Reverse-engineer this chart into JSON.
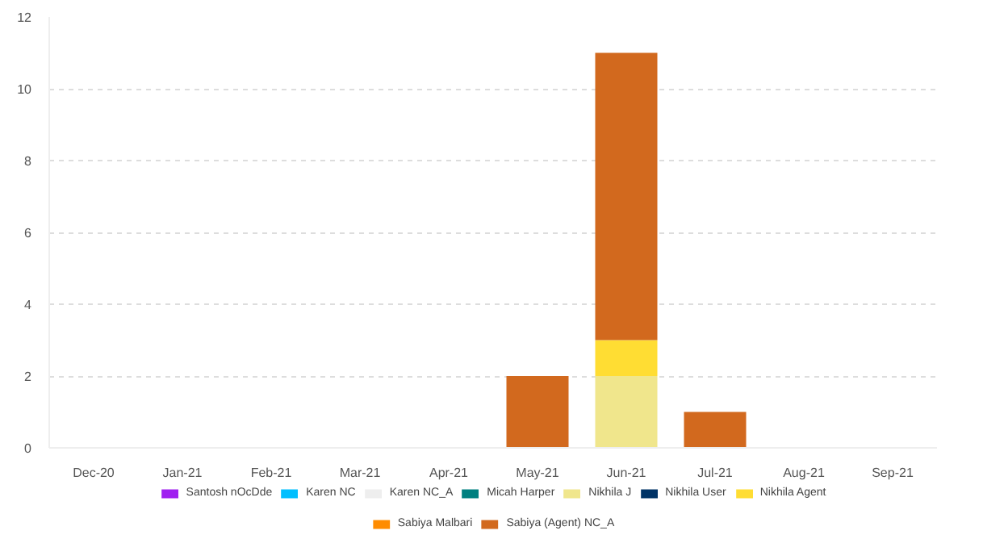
{
  "chart_data": {
    "type": "bar",
    "stacked": true,
    "categories": [
      "Dec-20",
      "Jan-21",
      "Feb-21",
      "Mar-21",
      "Apr-21",
      "May-21",
      "Jun-21",
      "Jul-21",
      "Aug-21",
      "Sep-21"
    ],
    "series": [
      {
        "name": "Santosh nOcDde",
        "color": "#a020f0",
        "values": [
          0,
          0,
          0,
          0,
          0,
          0,
          0,
          0,
          0,
          0
        ]
      },
      {
        "name": "Karen NC",
        "color": "#00bfff",
        "values": [
          0,
          0,
          0,
          0,
          0,
          0,
          0,
          0,
          0,
          0
        ]
      },
      {
        "name": "Karen NC_A",
        "color": "#eeeeee",
        "values": [
          0,
          0,
          0,
          0,
          0,
          0,
          0,
          0,
          0,
          0
        ]
      },
      {
        "name": "Micah Harper",
        "color": "#008080",
        "values": [
          0,
          0,
          0,
          0,
          0,
          0,
          0,
          0,
          0,
          0
        ]
      },
      {
        "name": "Nikhila J",
        "color": "#f0e68c",
        "values": [
          0,
          0,
          0,
          0,
          0,
          0,
          2,
          0,
          0,
          0
        ]
      },
      {
        "name": "Nikhila User",
        "color": "#003366",
        "values": [
          0,
          0,
          0,
          0,
          0,
          0,
          0,
          0,
          0,
          0
        ]
      },
      {
        "name": "Nikhila Agent",
        "color": "#ffdd33",
        "values": [
          0,
          0,
          0,
          0,
          0,
          0,
          1,
          0,
          0,
          0
        ]
      },
      {
        "name": "Sabiya Malbari",
        "color": "#ff8c00",
        "values": [
          0,
          0,
          0,
          0,
          0,
          0,
          0,
          0,
          0,
          0
        ]
      },
      {
        "name": "Sabiya (Agent) NC_A",
        "color": "#d2691e",
        "values": [
          0,
          0,
          0,
          0,
          0,
          2,
          8,
          1,
          0,
          0
        ]
      }
    ],
    "ylim": [
      0,
      12
    ],
    "yticks": [
      0,
      2,
      4,
      6,
      8,
      10,
      12
    ],
    "grid": "y",
    "legend": "bottom"
  }
}
